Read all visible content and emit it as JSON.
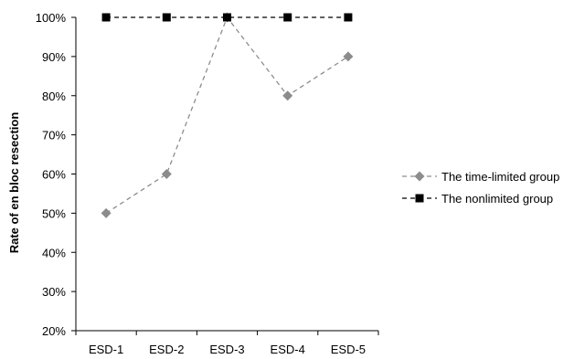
{
  "chart_data": {
    "type": "line",
    "categories": [
      "ESD-1",
      "ESD-2",
      "ESD-3",
      "ESD-4",
      "ESD-5"
    ],
    "ylabel": "Rate of en bloc resection",
    "xlabel": "",
    "ylim": [
      20,
      100
    ],
    "y_ticks": [
      "20%",
      "30%",
      "40%",
      "50%",
      "60%",
      "70%",
      "80%",
      "90%",
      "100%"
    ],
    "y_unit": "%",
    "grid": false,
    "legend_position": "right",
    "series": [
      {
        "name": "The time-limited group",
        "values": [
          50,
          60,
          100,
          80,
          90
        ],
        "color": "#8c8c8c",
        "marker": "diamond",
        "line_style": "dashed"
      },
      {
        "name": "The nonlimited group",
        "values": [
          100,
          100,
          100,
          100,
          100
        ],
        "color": "#000000",
        "marker": "square",
        "line_style": "dashed"
      }
    ]
  }
}
